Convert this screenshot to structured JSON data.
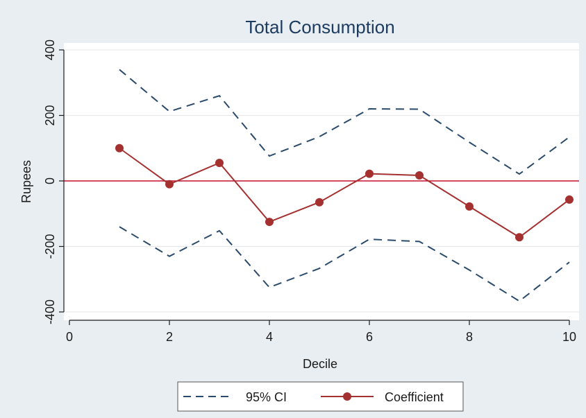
{
  "chart_data": {
    "type": "line",
    "title": "Total Consumption",
    "xlabel": "Decile",
    "ylabel": "Rupees",
    "x": [
      1,
      2,
      3,
      4,
      5,
      6,
      7,
      8,
      9,
      10
    ],
    "xlim": [
      0,
      10
    ],
    "ylim": [
      -400,
      400
    ],
    "xticks": [
      0,
      2,
      4,
      6,
      8,
      10
    ],
    "yticks": [
      -400,
      -200,
      0,
      200,
      400
    ],
    "grid": true,
    "legend_position": "bottom",
    "reference_line": {
      "y": 0,
      "color": "#c8102e"
    },
    "series": [
      {
        "name": "Coefficient",
        "style": "solid-markers",
        "color": "#a53030",
        "values": [
          100,
          -10,
          55,
          -125,
          -65,
          22,
          17,
          -78,
          -172,
          -57
        ]
      },
      {
        "name": "95% CI",
        "style": "dashed",
        "color": "#2a4a6b",
        "upper": [
          340,
          212,
          260,
          76,
          135,
          220,
          219,
          118,
          21,
          134
        ],
        "lower": [
          -140,
          -230,
          -152,
          -325,
          -267,
          -178,
          -185,
          -272,
          -367,
          -248
        ]
      }
    ]
  }
}
